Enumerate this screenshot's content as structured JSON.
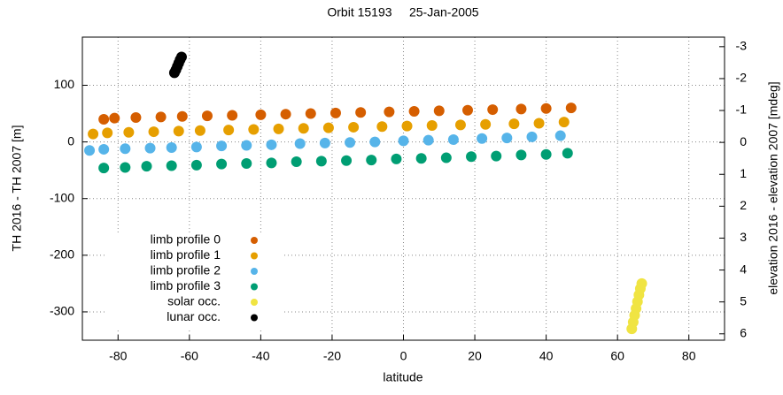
{
  "chart_data": {
    "type": "scatter",
    "title": "Orbit 15193     25-Jan-2005",
    "xlabel": "latitude",
    "ylabel": "TH 2016 - TH 2007 [m]",
    "y2label": "elevation 2016 - elevation 2007 [mdeg]",
    "xlim": [
      -90,
      90
    ],
    "xticks": [
      -80,
      -60,
      -40,
      -20,
      0,
      20,
      40,
      60,
      80
    ],
    "ylim": [
      -350,
      185
    ],
    "yticks": [
      -300,
      -200,
      -100,
      0,
      100
    ],
    "y2lim": [
      6.2,
      -3.3
    ],
    "y2ticks": [
      -3,
      -2,
      -1,
      0,
      1,
      2,
      3,
      4,
      5,
      6
    ],
    "grid": true,
    "legend": "lower left",
    "series": [
      {
        "name": "limb profile 0",
        "color": "#d55e00",
        "x": [
          -84,
          -81,
          -75,
          -68,
          -62,
          -55,
          -48,
          -40,
          -33,
          -26,
          -19,
          -12,
          -4,
          3,
          10,
          18,
          25,
          33,
          40,
          47
        ],
        "values": [
          40,
          42,
          43,
          44,
          45,
          46,
          47,
          48,
          49,
          50,
          51,
          52,
          53,
          54,
          55,
          56,
          57,
          58,
          59,
          60
        ]
      },
      {
        "name": "limb profile 1",
        "color": "#e69f00",
        "x": [
          -87,
          -83,
          -77,
          -70,
          -63,
          -57,
          -49,
          -42,
          -35,
          -28,
          -21,
          -14,
          -6,
          1,
          8,
          16,
          23,
          31,
          38,
          45
        ],
        "values": [
          14,
          16,
          17,
          18,
          19,
          20,
          21,
          22,
          23,
          24,
          25,
          26,
          27,
          28,
          29,
          30,
          31,
          32,
          33,
          35
        ]
      },
      {
        "name": "limb profile 2",
        "color": "#56b4e9",
        "x": [
          -88,
          -84,
          -78,
          -71,
          -65,
          -58,
          -51,
          -44,
          -37,
          -29,
          -22,
          -15,
          -8,
          0,
          7,
          14,
          22,
          29,
          36,
          44
        ],
        "values": [
          -15,
          -13,
          -12,
          -11,
          -10,
          -9,
          -7,
          -6,
          -5,
          -3,
          -2,
          -1,
          0,
          2,
          3,
          4,
          6,
          7,
          9,
          11
        ]
      },
      {
        "name": "limb profile 3",
        "color": "#009e73",
        "x": [
          -84,
          -78,
          -72,
          -65,
          -58,
          -51,
          -44,
          -37,
          -30,
          -23,
          -16,
          -9,
          -2,
          5,
          12,
          19,
          26,
          33,
          40,
          46
        ],
        "values": [
          -46,
          -45,
          -43,
          -42,
          -41,
          -39,
          -38,
          -37,
          -35,
          -34,
          -33,
          -32,
          -30,
          -29,
          -28,
          -26,
          -25,
          -23,
          -22,
          -20
        ]
      },
      {
        "name": "solar occ.",
        "color": "#f0e442",
        "x": [
          64,
          64.4,
          64.8,
          65.2,
          65.6,
          66,
          66.4,
          66.8
        ],
        "values": [
          -330,
          -318,
          -306,
          -294,
          -282,
          -270,
          -259,
          -250
        ]
      },
      {
        "name": "lunar occ.",
        "color": "#000000",
        "x": [
          -64.2,
          -63.8,
          -63.4,
          -63,
          -62.6,
          -62.2
        ],
        "values": [
          122,
          127,
          133,
          139,
          145,
          150
        ]
      }
    ]
  }
}
